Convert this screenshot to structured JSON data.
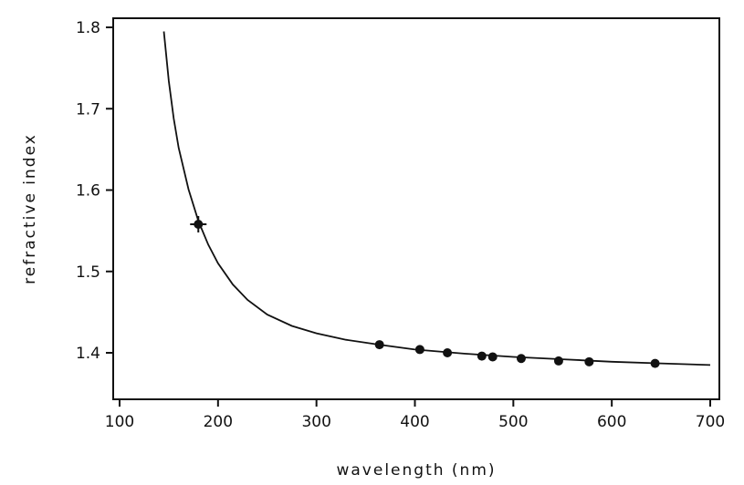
{
  "chart_data": {
    "type": "scatter",
    "title": "",
    "xlabel": "wavelength (nm)",
    "ylabel": "refractive index",
    "xlim": [
      100,
      700
    ],
    "ylim": [
      1.34,
      1.8
    ],
    "xticks": [
      100,
      200,
      300,
      400,
      500,
      600,
      700
    ],
    "yticks": [
      1.4,
      1.5,
      1.6,
      1.7,
      1.8
    ],
    "xtick_labels": [
      "100",
      "200",
      "300",
      "400",
      "500",
      "600",
      "700"
    ],
    "ytick_labels": [
      "1.4",
      "1.5",
      "1.6",
      "1.7",
      "1.8"
    ],
    "grid": false,
    "series": [
      {
        "kind": "points",
        "x": [
          180,
          364,
          405,
          433,
          468,
          479,
          508,
          546,
          577,
          644
        ],
        "y": [
          1.558,
          1.41,
          1.404,
          1.4,
          1.396,
          1.395,
          1.393,
          1.39,
          1.389,
          1.387
        ]
      },
      {
        "kind": "fit-curve",
        "x": [
          145,
          150,
          155,
          160,
          170,
          180,
          190,
          200,
          215,
          230,
          250,
          275,
          300,
          330,
          364,
          400,
          450,
          500,
          550,
          600,
          650,
          700
        ],
        "y": [
          1.795,
          1.734,
          1.688,
          1.652,
          1.601,
          1.562,
          1.533,
          1.51,
          1.484,
          1.465,
          1.447,
          1.433,
          1.424,
          1.416,
          1.41,
          1.404,
          1.399,
          1.395,
          1.392,
          1.389,
          1.387,
          1.385
        ]
      }
    ]
  }
}
